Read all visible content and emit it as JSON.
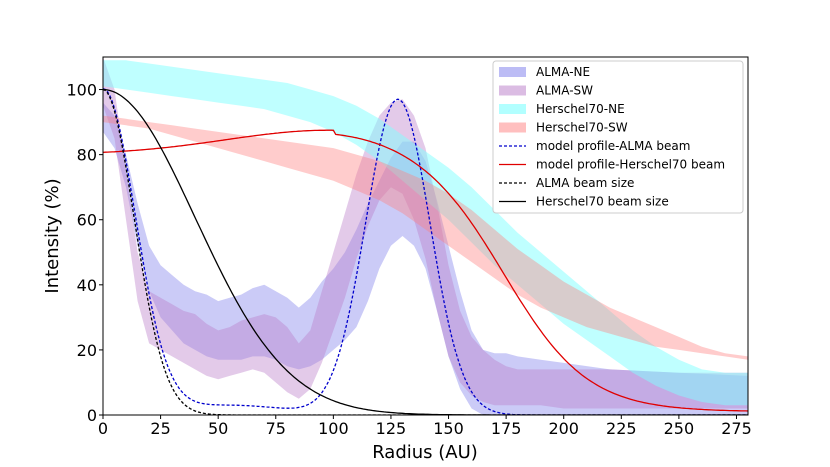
{
  "chart_data": {
    "type": "area",
    "xlabel": "Radius (AU)",
    "ylabel": "Intensity (%)",
    "xlim": [
      0,
      280
    ],
    "ylim": [
      0,
      110
    ],
    "xticks": [
      0,
      25,
      50,
      75,
      100,
      125,
      150,
      175,
      200,
      225,
      250,
      275
    ],
    "yticks": [
      0,
      20,
      40,
      60,
      80,
      100
    ],
    "grid": false,
    "legend_position": "top-right",
    "bands": [
      {
        "name": "ALMA-NE",
        "color": "#6a6ae8",
        "opacity": 0.35,
        "x": [
          0,
          5,
          10,
          15,
          20,
          25,
          30,
          35,
          40,
          45,
          50,
          55,
          60,
          65,
          70,
          75,
          80,
          85,
          90,
          95,
          100,
          105,
          110,
          115,
          120,
          125,
          130,
          135,
          140,
          145,
          150,
          155,
          160,
          165,
          170,
          175,
          180,
          190,
          200,
          220,
          250,
          280
        ],
        "upper": [
          96,
          92,
          80,
          65,
          52,
          46,
          43,
          40,
          38,
          37,
          35,
          36,
          37,
          39,
          40,
          38,
          36,
          33,
          36,
          41,
          45,
          50,
          57,
          65,
          72,
          79,
          84,
          84,
          78,
          66,
          52,
          38,
          26,
          20,
          19,
          19,
          18,
          17,
          16,
          14,
          13,
          12
        ],
        "lower": [
          87,
          82,
          70,
          52,
          38,
          30,
          26,
          22,
          20,
          18,
          17,
          17,
          17,
          18,
          18,
          17,
          15,
          14,
          15,
          17,
          20,
          23,
          27,
          35,
          45,
          52,
          55,
          52,
          45,
          32,
          18,
          8,
          2,
          0,
          0,
          0,
          0,
          0,
          0,
          0,
          0,
          0
        ]
      },
      {
        "name": "ALMA-SW",
        "color": "#b87ac8",
        "opacity": 0.4,
        "x": [
          0,
          5,
          10,
          15,
          20,
          25,
          30,
          35,
          40,
          45,
          50,
          55,
          60,
          65,
          70,
          75,
          80,
          85,
          90,
          95,
          100,
          105,
          110,
          115,
          120,
          125,
          130,
          135,
          140,
          145,
          150,
          155,
          160,
          165,
          170,
          175,
          180,
          190,
          200,
          220,
          250,
          280
        ],
        "upper": [
          110,
          100,
          75,
          50,
          38,
          36,
          34,
          32,
          31,
          28,
          26,
          27,
          29,
          30,
          31,
          30,
          27,
          22,
          26,
          38,
          50,
          62,
          74,
          84,
          92,
          96,
          97,
          92,
          82,
          65,
          46,
          32,
          24,
          20,
          17,
          15,
          14,
          14,
          14,
          14,
          13,
          13
        ],
        "lower": [
          95,
          85,
          60,
          35,
          22,
          20,
          18,
          16,
          14,
          12,
          11,
          12,
          13,
          14,
          13,
          10,
          7,
          5,
          8,
          16,
          26,
          36,
          48,
          58,
          66,
          70,
          68,
          60,
          48,
          32,
          18,
          10,
          6,
          4,
          3,
          3,
          3,
          3,
          2,
          2,
          2,
          2
        ]
      },
      {
        "name": "Herschel70-NE",
        "color": "#7fffff",
        "opacity": 0.5,
        "x": [
          0,
          10,
          20,
          30,
          40,
          50,
          60,
          70,
          80,
          90,
          100,
          110,
          120,
          130,
          140,
          150,
          160,
          170,
          180,
          190,
          200,
          210,
          220,
          230,
          240,
          250,
          260,
          270,
          280
        ],
        "upper": [
          109,
          109,
          108,
          107,
          106,
          105,
          104,
          103,
          102,
          100,
          98,
          95,
          91,
          86,
          81,
          76,
          70,
          63,
          56,
          50,
          44,
          38,
          32,
          26,
          21,
          17,
          14,
          13,
          13
        ],
        "lower": [
          101,
          100,
          99,
          98,
          97,
          96,
          95,
          94,
          92,
          90,
          87,
          83,
          78,
          72,
          66,
          60,
          53,
          46,
          40,
          34,
          28,
          23,
          18,
          13,
          9,
          6,
          4,
          3,
          3
        ]
      },
      {
        "name": "Herschel70-SW",
        "color": "#ff8080",
        "opacity": 0.4,
        "x": [
          0,
          10,
          20,
          30,
          40,
          50,
          60,
          70,
          80,
          90,
          100,
          110,
          120,
          130,
          140,
          150,
          160,
          170,
          180,
          190,
          200,
          210,
          220,
          230,
          240,
          250,
          260,
          270,
          280
        ],
        "upper": [
          92,
          91,
          90,
          89,
          88,
          87,
          86,
          85,
          84,
          83,
          82,
          80,
          78,
          75,
          72,
          68,
          63,
          57,
          51,
          46,
          41,
          37,
          33,
          30,
          27,
          24,
          21,
          19,
          18
        ],
        "lower": [
          90,
          89,
          88,
          86,
          84,
          82,
          80,
          78,
          76,
          74,
          72,
          69,
          66,
          62,
          57,
          52,
          47,
          42,
          37,
          33,
          30,
          27,
          25,
          23,
          21,
          20,
          19,
          18,
          17
        ]
      }
    ],
    "lines": [
      {
        "name": "model profile-ALMA beam",
        "color": "#0000cc",
        "style": "dashed",
        "curve": "model-alma"
      },
      {
        "name": "model profile-Herschel70 beam",
        "color": "#e00000",
        "style": "solid",
        "curve": "model-herschel"
      },
      {
        "name": "ALMA beam size",
        "color": "#000000",
        "style": "dashed",
        "curve": "alma-beam"
      },
      {
        "name": "Herschel70 beam size",
        "color": "#000000",
        "style": "solid",
        "curve": "herschel-beam"
      }
    ]
  }
}
